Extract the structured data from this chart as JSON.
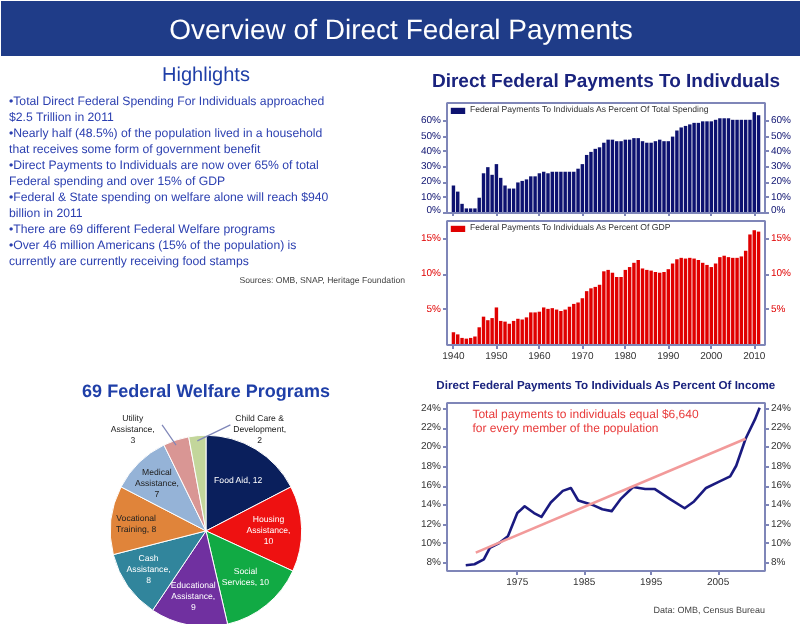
{
  "chart_data": [
    {
      "type": "other",
      "title": "Overview of Direct Federal Payments",
      "subtitle": "Highlights",
      "annotations": [
        "•Total Direct Federal Spending  For Individuals approached $2.5 Trillion in  2011",
        "•Nearly half (48.5%) of the population lived in a household that receives some form of government benefit",
        "•Direct Payments to Individuals are now over 65% of total Federal spending and over 15% of GDP",
        "•Federal & State spending on welfare alone will reach $940 billion in 2011",
        "•There are 69 different Federal  Welfare programs",
        "•Over 46 million Americans (15% of the population) is currently are currently receiving food stamps",
        "Sources: OMB, SNAP, Heritage Foundation"
      ]
    },
    {
      "type": "bar",
      "title": "Direct Federal Payments To Indivduals",
      "x": [
        1940,
        1941,
        1942,
        1943,
        1944,
        1945,
        1946,
        1947,
        1948,
        1949,
        1950,
        1951,
        1952,
        1953,
        1954,
        1955,
        1956,
        1957,
        1958,
        1959,
        1960,
        1961,
        1962,
        1963,
        1964,
        1965,
        1966,
        1967,
        1968,
        1969,
        1970,
        1971,
        1972,
        1973,
        1974,
        1975,
        1976,
        1977,
        1978,
        1979,
        1980,
        1981,
        1982,
        1983,
        1984,
        1985,
        1986,
        1987,
        1988,
        1989,
        1990,
        1991,
        1992,
        1993,
        1994,
        1995,
        1996,
        1997,
        1998,
        1999,
        2000,
        2001,
        2002,
        2003,
        2004,
        2005,
        2006,
        2007,
        2008,
        2009,
        2010,
        2011
      ],
      "series": [
        {
          "name": "Federal Payments To Individuals As Percent Of Total Spending",
          "color": "#0d1270",
          "values": [
            18,
            14,
            6,
            3,
            3,
            3,
            10,
            26,
            30,
            25,
            32,
            23,
            18,
            16,
            16,
            20,
            21,
            22,
            24,
            24,
            26,
            27,
            26,
            27,
            27,
            27,
            27,
            27,
            27,
            29,
            32,
            38,
            40,
            42,
            43,
            46,
            48,
            48,
            47,
            47,
            48,
            48,
            49,
            49,
            47,
            46,
            46,
            47,
            48,
            47,
            47,
            50,
            54,
            56,
            57,
            58,
            59,
            59,
            60,
            60,
            60,
            61,
            62,
            62,
            62,
            61,
            61,
            61,
            61,
            61,
            66,
            64
          ]
        }
      ],
      "xlim": [
        1938.5,
        2012.5
      ],
      "xticks": [
        1940,
        1950,
        1960,
        1970,
        1980,
        1990,
        2000,
        2010
      ],
      "tick_labels": "y",
      "ylim": [
        0,
        72
      ],
      "yticks": [
        {
          "value": 0,
          "label": "0%"
        },
        {
          "value": 10,
          "label": "10%"
        },
        {
          "value": 20,
          "label": "20%"
        },
        {
          "value": 30,
          "label": "30%"
        },
        {
          "value": 40,
          "label": "40%"
        },
        {
          "value": 50,
          "label": "50%"
        },
        {
          "value": 60,
          "label": "60%"
        }
      ],
      "y2lim": [
        0,
        72
      ],
      "y2ticks": [
        {
          "value": 0,
          "label": "0%"
        },
        {
          "value": 10,
          "label": "10%"
        },
        {
          "value": 20,
          "label": "20%"
        },
        {
          "value": 30,
          "label": "30%"
        },
        {
          "value": 40,
          "label": "40%"
        },
        {
          "value": 50,
          "label": "50%"
        },
        {
          "value": 60,
          "label": "60%"
        }
      ],
      "legend": "top left"
    },
    {
      "type": "bar",
      "x": [
        1940,
        1941,
        1942,
        1943,
        1944,
        1945,
        1946,
        1947,
        1948,
        1949,
        1950,
        1951,
        1952,
        1953,
        1954,
        1955,
        1956,
        1957,
        1958,
        1959,
        1960,
        1961,
        1962,
        1963,
        1964,
        1965,
        1966,
        1967,
        1968,
        1969,
        1970,
        1971,
        1972,
        1973,
        1974,
        1975,
        1976,
        1977,
        1978,
        1979,
        1980,
        1981,
        1982,
        1983,
        1984,
        1985,
        1986,
        1987,
        1988,
        1989,
        1990,
        1991,
        1992,
        1993,
        1994,
        1995,
        1996,
        1997,
        1998,
        1999,
        2000,
        2001,
        2002,
        2003,
        2004,
        2005,
        2006,
        2007,
        2008,
        2009,
        2010,
        2011
      ],
      "series": [
        {
          "name": "Federal Payments To Individuals As Percent Of GDP",
          "color": "#e00000",
          "values": [
            1.8,
            1.5,
            1.0,
            0.9,
            1.0,
            1.2,
            2.5,
            4.0,
            3.5,
            3.8,
            5.3,
            3.4,
            3.3,
            3.0,
            3.4,
            3.7,
            3.6,
            3.9,
            4.6,
            4.6,
            4.7,
            5.3,
            5.1,
            5.2,
            5.0,
            4.8,
            5.0,
            5.4,
            5.8,
            6.0,
            6.6,
            7.6,
            8.0,
            8.2,
            8.5,
            10.4,
            10.6,
            10.2,
            9.6,
            9.6,
            10.6,
            11.0,
            11.6,
            12.0,
            10.8,
            10.6,
            10.5,
            10.3,
            10.2,
            10.3,
            10.7,
            11.5,
            12.1,
            12.3,
            12.2,
            12.3,
            12.2,
            12.0,
            11.6,
            11.3,
            11.0,
            11.5,
            12.4,
            12.6,
            12.4,
            12.3,
            12.3,
            12.5,
            13.3,
            15.6,
            16.2,
            16.0
          ]
        }
      ],
      "xlim": [
        1938.5,
        2012.5
      ],
      "xticks": [
        1940,
        1950,
        1960,
        1970,
        1980,
        1990,
        2000,
        2010
      ],
      "ylim": [
        0,
        17.5
      ],
      "yticks": [
        {
          "value": 5,
          "label": "5%"
        },
        {
          "value": 10,
          "label": "10%"
        },
        {
          "value": 15,
          "label": "15%"
        }
      ],
      "y2lim": [
        0,
        17.5
      ],
      "y2ticks": [
        {
          "value": 5,
          "label": "5%"
        },
        {
          "value": 10,
          "label": "10%"
        },
        {
          "value": 15,
          "label": "15%"
        }
      ],
      "legend": "top left"
    },
    {
      "type": "pie",
      "title": "69 Federal Welfare Programs",
      "categories": [
        "Food Aid, 12",
        "Housing Assistance, 10",
        "Social Services, 10",
        "Educational Assistance, 9",
        "Cash Assistance, 8",
        "Vocational Training, 8",
        "Medical Assistance, 7",
        "Utility Assistance, 3",
        "Child Care & Development, 2"
      ],
      "values": [
        12,
        10,
        10,
        9,
        8,
        8,
        7,
        3,
        2
      ],
      "colors": [
        "#0a1f5c",
        "#ee1111",
        "#11aa44",
        "#7030a0",
        "#31859c",
        "#e0843a",
        "#95b3d7",
        "#d99694",
        "#c3d69b"
      ]
    },
    {
      "type": "line",
      "title": "Direct Federal Payments To Individuals As Percent Of Income",
      "series": [
        {
          "color": "#1a1a80",
          "x": [
            1967.3,
            1968.6,
            1970,
            1970.9,
            1972.3,
            1973.6,
            1975,
            1976.1,
            1977.5,
            1978.6,
            1980,
            1981.8,
            1983,
            1984.1,
            1986.4,
            1987.7,
            1989.1,
            1990.5,
            1992.3,
            1994.1,
            1995.5,
            1997.7,
            2000,
            2001.4,
            2003.2,
            2005,
            2006.8,
            2007.7,
            2009.1,
            2010.5,
            2011.2
          ],
          "values": [
            7.8,
            7.9,
            8.4,
            9.6,
            10.1,
            10.8,
            13.2,
            13.9,
            13.2,
            12.8,
            14.3,
            15.5,
            15.8,
            14.5,
            14.0,
            13.6,
            13.4,
            14.7,
            15.9,
            15.7,
            15.7,
            14.7,
            13.7,
            14.4,
            15.8,
            16.4,
            17.0,
            18.1,
            20.9,
            22.9,
            24.1
          ]
        },
        {
          "type": "line",
          "color": "#f29a9a",
          "x": [
            1968.8,
            2009.1
          ],
          "values": [
            9.1,
            20.9
          ]
        }
      ],
      "xlim": [
        1964.5,
        2012
      ],
      "xticks": [
        1975,
        1985,
        1995,
        2005
      ],
      "ylim": [
        7.2,
        24.6
      ],
      "yticks": [
        {
          "value": 8,
          "label": "8%"
        },
        {
          "value": 10,
          "label": "10%"
        },
        {
          "value": 12,
          "label": "12%"
        },
        {
          "value": 14,
          "label": "14%"
        },
        {
          "value": 16,
          "label": "16%"
        },
        {
          "value": 18,
          "label": "18%"
        },
        {
          "value": 20,
          "label": "20%"
        },
        {
          "value": 22,
          "label": "22%"
        },
        {
          "value": 24,
          "label": "24%"
        }
      ],
      "y2lim": [
        7.2,
        24.6
      ],
      "y2ticks": [
        {
          "value": 8,
          "label": "8%"
        },
        {
          "value": 10,
          "label": "10%"
        },
        {
          "value": 12,
          "label": "12%"
        },
        {
          "value": 14,
          "label": "14%"
        },
        {
          "value": 16,
          "label": "16%"
        },
        {
          "value": 18,
          "label": "18%"
        },
        {
          "value": 20,
          "label": "20%"
        },
        {
          "value": 22,
          "label": "22%"
        },
        {
          "value": 24,
          "label": "24%"
        }
      ],
      "annotations": [
        "Total payments to individuals  equal $6,640 for every member  of the population",
        "Data: OMB, Census Bureau"
      ]
    }
  ]
}
